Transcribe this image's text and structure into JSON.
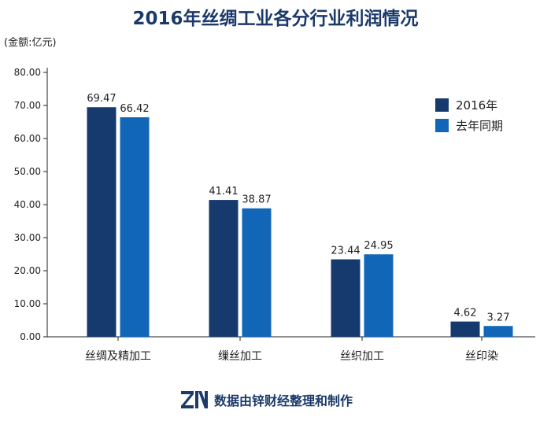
{
  "header": {
    "title": "2016年丝绸工业各分行业利润情况",
    "unit": "(金额:亿元)"
  },
  "footer": {
    "logo_text": "ZN",
    "text": "数据由锌财经整理和制作"
  },
  "colors": {
    "series_2016": "#163a6e",
    "series_last_year": "#1166b8",
    "title": "#1b3a6b"
  },
  "chart_data": {
    "type": "bar",
    "title": "2016年丝绸工业各分行业利润情况",
    "ylabel": "(金额:亿元)",
    "xlabel": "",
    "categories": [
      "丝绸及精加工",
      "缫丝加工",
      "丝织加工",
      "丝印染"
    ],
    "series": [
      {
        "name": "2016年",
        "values": [
          69.47,
          41.41,
          23.44,
          4.62
        ],
        "labels": [
          "69.47",
          "41.41",
          "23.44",
          "4.62"
        ]
      },
      {
        "name": "去年同期",
        "values": [
          66.42,
          38.87,
          24.95,
          3.27
        ],
        "labels": [
          "66.42",
          "38.87",
          "24.95",
          "3.27"
        ]
      }
    ],
    "ylim": [
      0,
      80
    ],
    "yticks": [
      "0.00",
      "10.00",
      "20.00",
      "30.00",
      "40.00",
      "50.00",
      "60.00",
      "70.00",
      "80.00"
    ],
    "grid": false,
    "legend": "top-right"
  }
}
